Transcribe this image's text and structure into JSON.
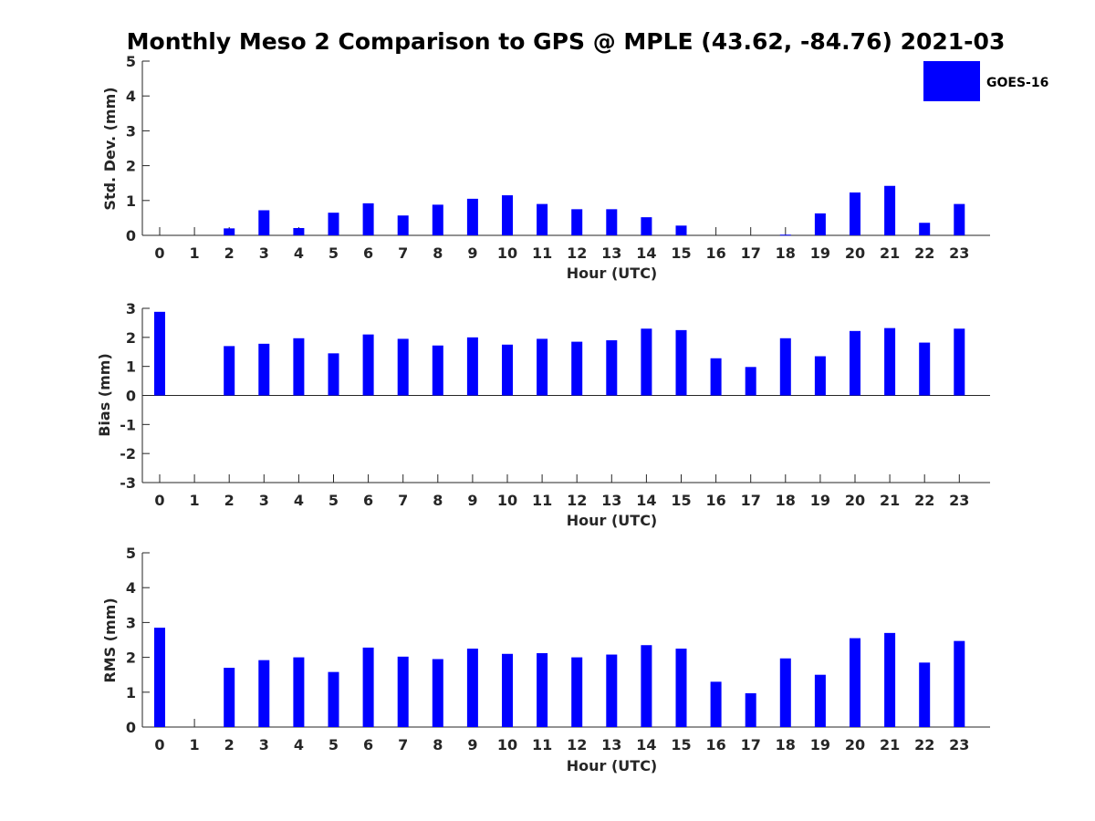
{
  "title": "Monthly Meso 2 Comparison to GPS @ MPLE (43.62, -84.76) 2021-03",
  "legend": {
    "label": "GOES-16",
    "color": "#0000ff"
  },
  "chart_data": [
    {
      "type": "bar",
      "xlabel": "Hour (UTC)",
      "ylabel": "Std. Dev. (mm)",
      "ylim": [
        0,
        5
      ],
      "yticks": [
        0,
        1,
        2,
        3,
        4,
        5
      ],
      "categories": [
        "0",
        "1",
        "2",
        "3",
        "4",
        "5",
        "6",
        "7",
        "8",
        "9",
        "10",
        "11",
        "12",
        "13",
        "14",
        "15",
        "16",
        "17",
        "18",
        "19",
        "20",
        "21",
        "22",
        "23"
      ],
      "series": [
        {
          "name": "GOES-16",
          "values": [
            null,
            null,
            0.2,
            0.72,
            0.21,
            0.65,
            0.92,
            0.57,
            0.88,
            1.05,
            1.15,
            0.9,
            0.75,
            0.75,
            0.52,
            0.28,
            null,
            null,
            0.02,
            0.63,
            1.23,
            1.42,
            0.36,
            0.9
          ]
        }
      ]
    },
    {
      "type": "bar",
      "xlabel": "Hour (UTC)",
      "ylabel": "Bias (mm)",
      "ylim": [
        -3,
        3
      ],
      "yticks": [
        -3,
        -2,
        -1,
        0,
        1,
        2,
        3
      ],
      "zero_line": true,
      "categories": [
        "0",
        "1",
        "2",
        "3",
        "4",
        "5",
        "6",
        "7",
        "8",
        "9",
        "10",
        "11",
        "12",
        "13",
        "14",
        "15",
        "16",
        "17",
        "18",
        "19",
        "20",
        "21",
        "22",
        "23"
      ],
      "series": [
        {
          "name": "GOES-16",
          "values": [
            2.88,
            null,
            1.7,
            1.78,
            1.97,
            1.45,
            2.1,
            1.95,
            1.72,
            2.0,
            1.75,
            1.95,
            1.85,
            1.9,
            2.3,
            2.25,
            1.28,
            0.98,
            1.97,
            1.35,
            2.22,
            2.32,
            1.82,
            2.3
          ]
        }
      ]
    },
    {
      "type": "bar",
      "xlabel": "Hour (UTC)",
      "ylabel": "RMS (mm)",
      "ylim": [
        0,
        5
      ],
      "yticks": [
        0,
        1,
        2,
        3,
        4,
        5
      ],
      "categories": [
        "0",
        "1",
        "2",
        "3",
        "4",
        "5",
        "6",
        "7",
        "8",
        "9",
        "10",
        "11",
        "12",
        "13",
        "14",
        "15",
        "16",
        "17",
        "18",
        "19",
        "20",
        "21",
        "22",
        "23"
      ],
      "series": [
        {
          "name": "GOES-16",
          "values": [
            2.85,
            null,
            1.7,
            1.92,
            2.0,
            1.58,
            2.28,
            2.02,
            1.95,
            2.25,
            2.1,
            2.12,
            2.0,
            2.08,
            2.35,
            2.25,
            1.3,
            0.97,
            1.97,
            1.5,
            2.55,
            2.7,
            1.85,
            2.47
          ]
        }
      ]
    }
  ]
}
